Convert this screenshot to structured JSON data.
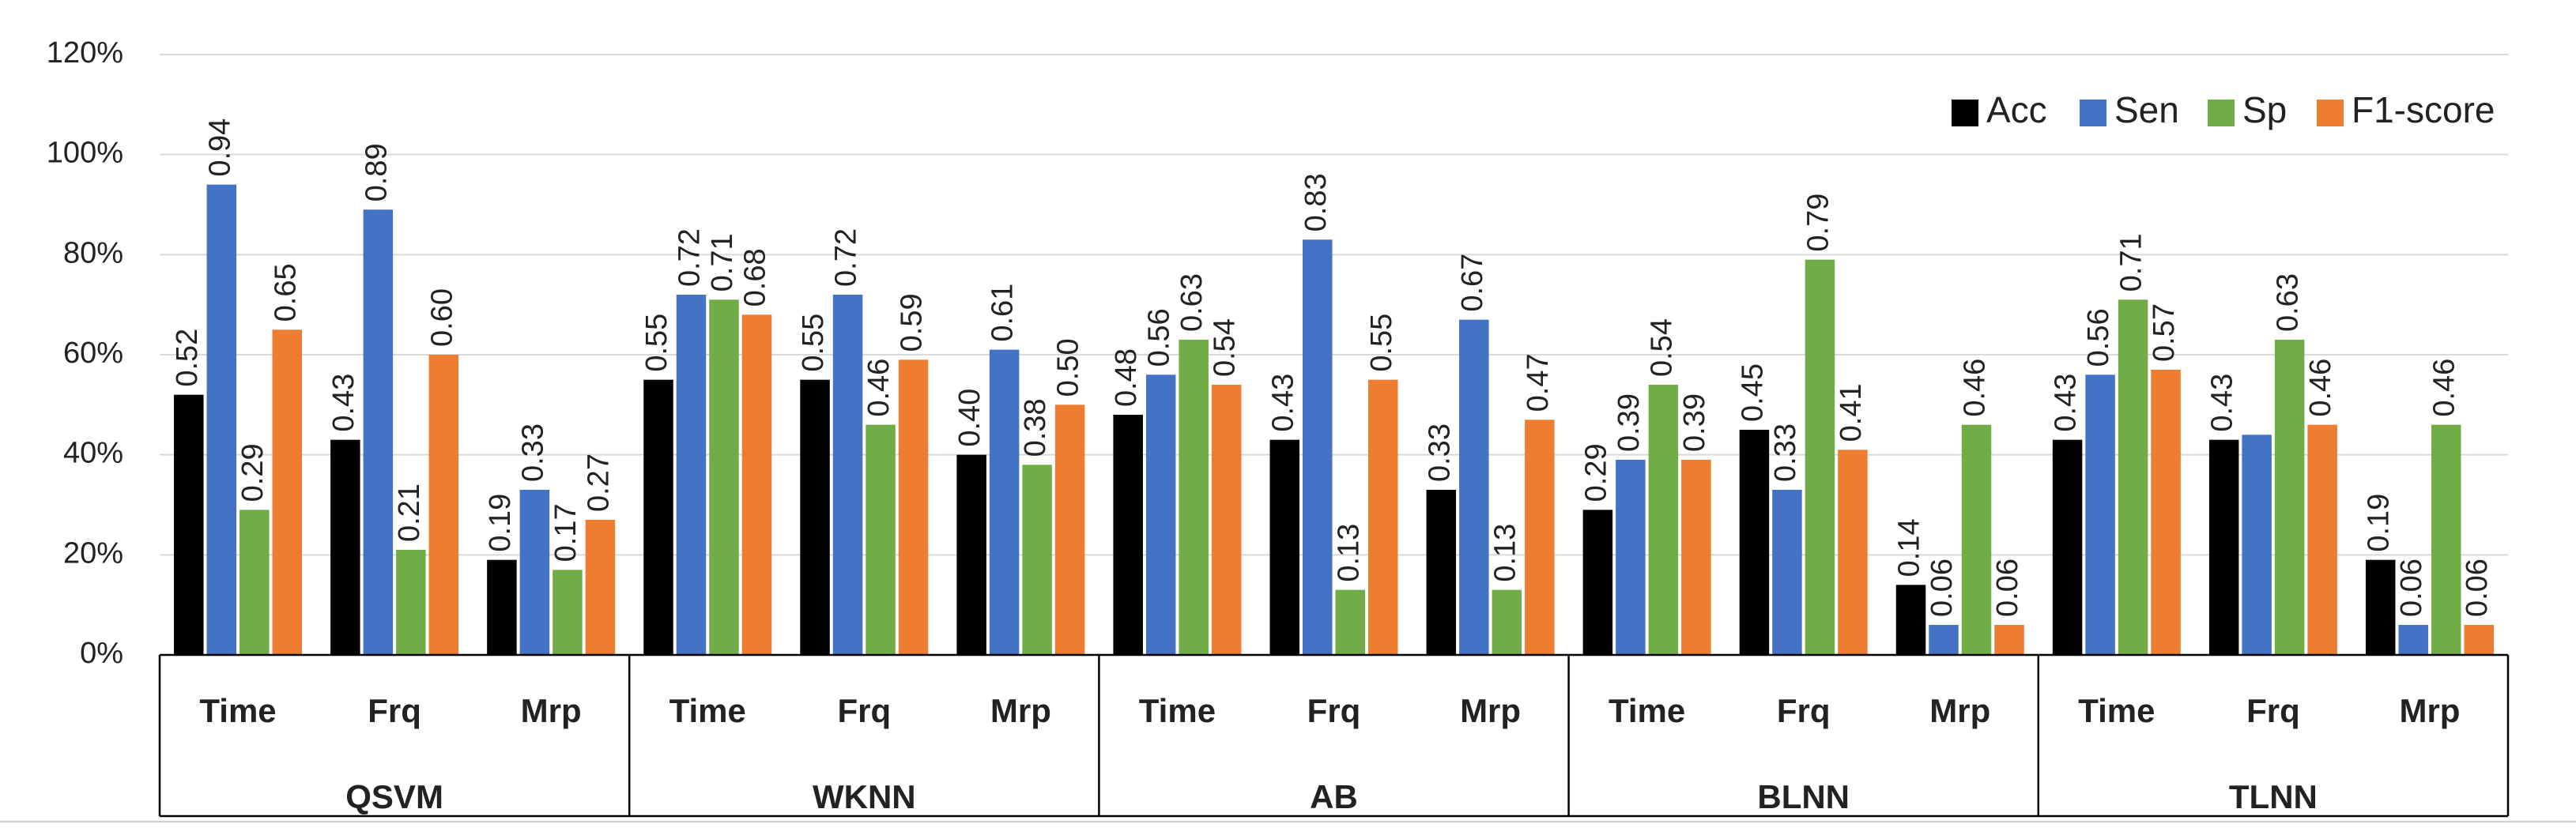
{
  "chart_data": {
    "type": "bar",
    "categories": [
      "Time",
      "Frq",
      "Mrp",
      "Time",
      "Frq",
      "Mrp",
      "Time",
      "Frq",
      "Mrp",
      "Time",
      "Frq",
      "Mrp",
      "Time",
      "Frq",
      "Mrp"
    ],
    "groups": [
      "QSVM",
      "WKNN",
      "AB",
      "BLNN",
      "TLNN"
    ],
    "series": [
      {
        "name": "Acc",
        "color": "#000000",
        "values": [
          0.52,
          0.43,
          0.19,
          0.55,
          0.55,
          0.4,
          0.48,
          0.43,
          0.33,
          0.29,
          0.45,
          0.14,
          0.43,
          0.43,
          0.19
        ],
        "value_labels": [
          "0.52",
          "0.43",
          "0.19",
          "0.55",
          "0.55",
          "0.40",
          "0.48",
          "0.43",
          "0.33",
          "0.29",
          "0.45",
          "0.14",
          "0.43",
          "0.43",
          "0.19"
        ]
      },
      {
        "name": "Sen",
        "color": "#4472c4",
        "values": [
          0.94,
          0.89,
          0.33,
          0.72,
          0.72,
          0.61,
          0.56,
          0.83,
          0.67,
          0.39,
          0.33,
          0.06,
          0.56,
          0.44,
          0.06
        ],
        "value_labels": [
          "0.94",
          "0.89",
          "0.33",
          "0.72",
          "0.72",
          "0.61",
          "0.56",
          "0.83",
          "0.67",
          "0.39",
          "0.33",
          "0.06",
          "0.56",
          null,
          "0.06"
        ]
      },
      {
        "name": "Sp",
        "color": "#70ad47",
        "values": [
          0.29,
          0.21,
          0.17,
          0.71,
          0.46,
          0.38,
          0.63,
          0.13,
          0.13,
          0.54,
          0.79,
          0.46,
          0.71,
          0.63,
          0.46
        ],
        "value_labels": [
          "0.29",
          "0.21",
          "0.17",
          "0.71",
          "0.46",
          "0.38",
          "0.63",
          "0.13",
          "0.13",
          "0.54",
          "0.79",
          "0.46",
          "0.71",
          "0.63",
          "0.46"
        ]
      },
      {
        "name": "F1-score",
        "color": "#ed7d31",
        "values": [
          0.65,
          0.6,
          0.27,
          0.68,
          0.59,
          0.5,
          0.54,
          0.55,
          0.47,
          0.39,
          0.41,
          0.06,
          0.57,
          0.46,
          0.06
        ],
        "value_labels": [
          "0.65",
          "0.60",
          "0.27",
          "0.68",
          "0.59",
          "0.50",
          "0.54",
          "0.55",
          "0.47",
          "0.39",
          "0.41",
          "0.06",
          "0.57",
          "0.46",
          "0.06"
        ]
      }
    ],
    "ylim": [
      0,
      1.2
    ],
    "yticks": [
      {
        "value": 0,
        "label": "0%"
      },
      {
        "value": 0.2,
        "label": "20%"
      },
      {
        "value": 0.4,
        "label": "40%"
      },
      {
        "value": 0.6,
        "label": "60%"
      },
      {
        "value": 0.8,
        "label": "80%"
      },
      {
        "value": 1.0,
        "label": "100%"
      },
      {
        "value": 1.2,
        "label": "120%"
      }
    ],
    "grid": true,
    "legend": "top-right"
  }
}
